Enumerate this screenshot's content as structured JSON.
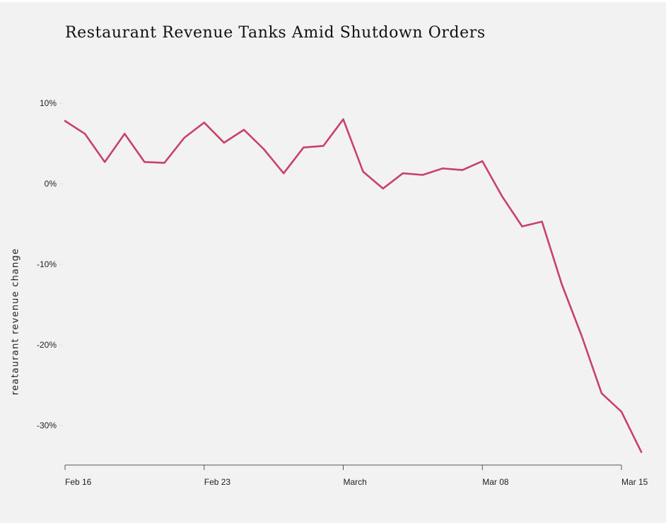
{
  "chart_data": {
    "type": "line",
    "title": "Restaurant Revenue Tanks Amid Shutdown Orders",
    "xlabel": "",
    "ylabel": "reataurant revenue change",
    "x": [
      "2020-02-16",
      "2020-02-17",
      "2020-02-18",
      "2020-02-19",
      "2020-02-20",
      "2020-02-21",
      "2020-02-22",
      "2020-02-23",
      "2020-02-24",
      "2020-02-25",
      "2020-02-26",
      "2020-02-27",
      "2020-02-28",
      "2020-02-29",
      "2020-03-01",
      "2020-03-02",
      "2020-03-03",
      "2020-03-04",
      "2020-03-05",
      "2020-03-06",
      "2020-03-07",
      "2020-03-08",
      "2020-03-09",
      "2020-03-10",
      "2020-03-11",
      "2020-03-12",
      "2020-03-13",
      "2020-03-14",
      "2020-03-15",
      "2020-03-16"
    ],
    "series": [
      {
        "name": "",
        "color": "#c8416a",
        "values": [
          7.8,
          6.2,
          2.7,
          6.2,
          2.7,
          2.6,
          5.7,
          7.6,
          5.1,
          6.7,
          4.3,
          1.3,
          4.5,
          4.7,
          8.0,
          1.5,
          -0.6,
          1.3,
          1.1,
          1.9,
          1.7,
          2.8,
          -1.6,
          -5.3,
          -4.7,
          -12.5,
          -18.9,
          -26.0,
          -28.3,
          -33.3
        ]
      }
    ],
    "x_ticks": [
      {
        "x": "2020-02-16",
        "label": "Feb 16"
      },
      {
        "x": "2020-02-23",
        "label": "Feb 23"
      },
      {
        "x": "2020-03-01",
        "label": "March"
      },
      {
        "x": "2020-03-08",
        "label": "Mar 08"
      },
      {
        "x": "2020-03-15",
        "label": "Mar 15"
      }
    ],
    "y_ticks": [
      {
        "value": 10,
        "label": "10%"
      },
      {
        "value": 0,
        "label": "0%"
      },
      {
        "value": -10,
        "label": "-10%"
      },
      {
        "value": -20,
        "label": "-20%"
      },
      {
        "value": -30,
        "label": "-30%"
      }
    ],
    "xlim": [
      "2020-02-16",
      "2020-03-16"
    ],
    "ylim": [
      -35,
      10
    ],
    "grid": false,
    "legend": "none"
  }
}
